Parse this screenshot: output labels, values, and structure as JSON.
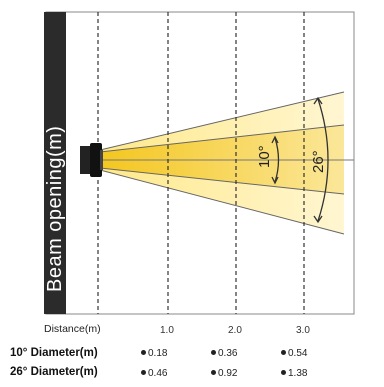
{
  "sidebar_label": "Beam opening(m)",
  "angles": {
    "narrow": "10°",
    "wide": "26°"
  },
  "distance_label": "Distance(m)",
  "distance_ticks": [
    "1.0",
    "2.0",
    "3.0"
  ],
  "rows": [
    {
      "label": "10° Diameter(m)",
      "values": [
        "0.18",
        "0.36",
        "0.54"
      ]
    },
    {
      "label": "26° Diameter(m)",
      "values": [
        "0.46",
        "0.92",
        "1.38"
      ]
    }
  ],
  "colors": {
    "sidebar": "#2b2b2b",
    "beam_outer": "#fff1b8",
    "beam_inner": "#f7d34a",
    "line": "#555555"
  }
}
